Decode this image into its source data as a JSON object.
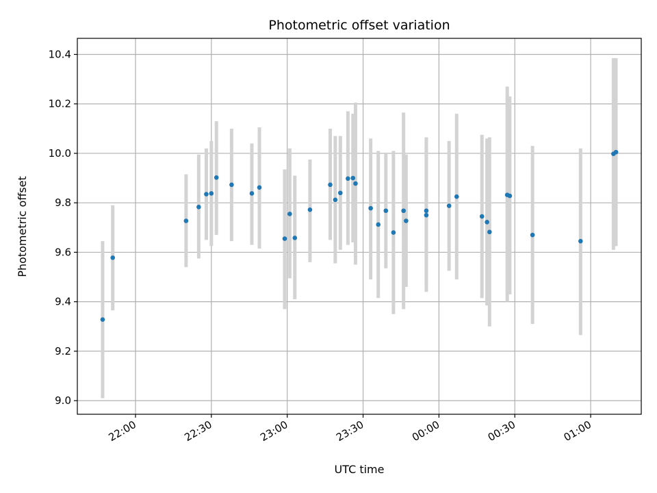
{
  "chart_data": {
    "type": "scatter",
    "title": "Photometric offset variation",
    "xlabel": "UTC time",
    "ylabel": "Photometric offset",
    "grid": true,
    "x_is_time_of_night": true,
    "xlim": [
      "21:37",
      "01:20"
    ],
    "ylim": [
      8.945,
      10.465
    ],
    "x_ticks": [
      "22:00",
      "22:30",
      "23:00",
      "23:30",
      "00:00",
      "00:30",
      "01:00"
    ],
    "y_ticks": [
      9.0,
      9.2,
      9.4,
      9.6,
      9.8,
      10.0,
      10.2,
      10.4
    ],
    "y_tick_labels": [
      "9.0",
      "9.2",
      "9.4",
      "9.6",
      "9.8",
      "10.0",
      "10.2",
      "10.4"
    ],
    "colors": {
      "point": "#1f77b4",
      "errorbar": "#d3d3d3",
      "grid": "#b0b0b0"
    },
    "points": [
      {
        "x": "21:47",
        "y": 9.328,
        "lo": 9.01,
        "hi": 9.645
      },
      {
        "x": "21:51",
        "y": 9.578,
        "lo": 9.365,
        "hi": 9.79
      },
      {
        "x": "22:20",
        "y": 9.727,
        "lo": 9.54,
        "hi": 9.915
      },
      {
        "x": "22:25",
        "y": 9.783,
        "lo": 9.575,
        "hi": 9.995
      },
      {
        "x": "22:28",
        "y": 9.835,
        "lo": 9.65,
        "hi": 10.02
      },
      {
        "x": "22:30",
        "y": 9.838,
        "lo": 9.625,
        "hi": 10.05
      },
      {
        "x": "22:32",
        "y": 9.902,
        "lo": 9.67,
        "hi": 10.13
      },
      {
        "x": "22:38",
        "y": 9.873,
        "lo": 9.645,
        "hi": 10.1
      },
      {
        "x": "22:46",
        "y": 9.838,
        "lo": 9.63,
        "hi": 10.04
      },
      {
        "x": "22:49",
        "y": 9.862,
        "lo": 9.615,
        "hi": 10.105
      },
      {
        "x": "22:59",
        "y": 9.655,
        "lo": 9.37,
        "hi": 9.935
      },
      {
        "x": "23:01",
        "y": 9.755,
        "lo": 9.495,
        "hi": 10.02
      },
      {
        "x": "23:03",
        "y": 9.658,
        "lo": 9.41,
        "hi": 9.91
      },
      {
        "x": "23:09",
        "y": 9.772,
        "lo": 9.56,
        "hi": 9.975
      },
      {
        "x": "23:17",
        "y": 9.873,
        "lo": 9.65,
        "hi": 10.1
      },
      {
        "x": "23:19",
        "y": 9.812,
        "lo": 9.555,
        "hi": 10.07
      },
      {
        "x": "23:21",
        "y": 9.84,
        "lo": 9.61,
        "hi": 10.07
      },
      {
        "x": "23:24",
        "y": 9.898,
        "lo": 9.63,
        "hi": 10.17
      },
      {
        "x": "23:26",
        "y": 9.9,
        "lo": 9.64,
        "hi": 10.16
      },
      {
        "x": "23:27",
        "y": 9.878,
        "lo": 9.55,
        "hi": 10.205
      },
      {
        "x": "23:33",
        "y": 9.778,
        "lo": 9.49,
        "hi": 10.06
      },
      {
        "x": "23:36",
        "y": 9.712,
        "lo": 9.415,
        "hi": 10.01
      },
      {
        "x": "23:39",
        "y": 9.768,
        "lo": 9.535,
        "hi": 10.0
      },
      {
        "x": "23:42",
        "y": 9.68,
        "lo": 9.35,
        "hi": 10.01
      },
      {
        "x": "23:46",
        "y": 9.768,
        "lo": 9.37,
        "hi": 10.165
      },
      {
        "x": "23:47",
        "y": 9.727,
        "lo": 9.46,
        "hi": 9.995
      },
      {
        "x": "23:55",
        "y": 9.75,
        "lo": 9.44,
        "hi": 10.06
      },
      {
        "x": "23:55",
        "y": 9.768,
        "lo": 9.47,
        "hi": 10.065
      },
      {
        "x": "00:04",
        "y": 9.788,
        "lo": 9.525,
        "hi": 10.05
      },
      {
        "x": "00:07",
        "y": 9.825,
        "lo": 9.49,
        "hi": 10.16
      },
      {
        "x": "00:17",
        "y": 9.745,
        "lo": 9.415,
        "hi": 10.075
      },
      {
        "x": "00:19",
        "y": 9.722,
        "lo": 9.385,
        "hi": 10.06
      },
      {
        "x": "00:20",
        "y": 9.682,
        "lo": 9.3,
        "hi": 10.065
      },
      {
        "x": "00:27",
        "y": 9.832,
        "lo": 9.4,
        "hi": 10.27
      },
      {
        "x": "00:28",
        "y": 9.828,
        "lo": 9.43,
        "hi": 10.23
      },
      {
        "x": "00:37",
        "y": 9.67,
        "lo": 9.31,
        "hi": 10.03
      },
      {
        "x": "00:56",
        "y": 9.645,
        "lo": 9.265,
        "hi": 10.02
      },
      {
        "x": "01:09",
        "y": 9.998,
        "lo": 9.61,
        "hi": 10.385
      },
      {
        "x": "01:10",
        "y": 10.005,
        "lo": 9.625,
        "hi": 10.385
      }
    ]
  }
}
